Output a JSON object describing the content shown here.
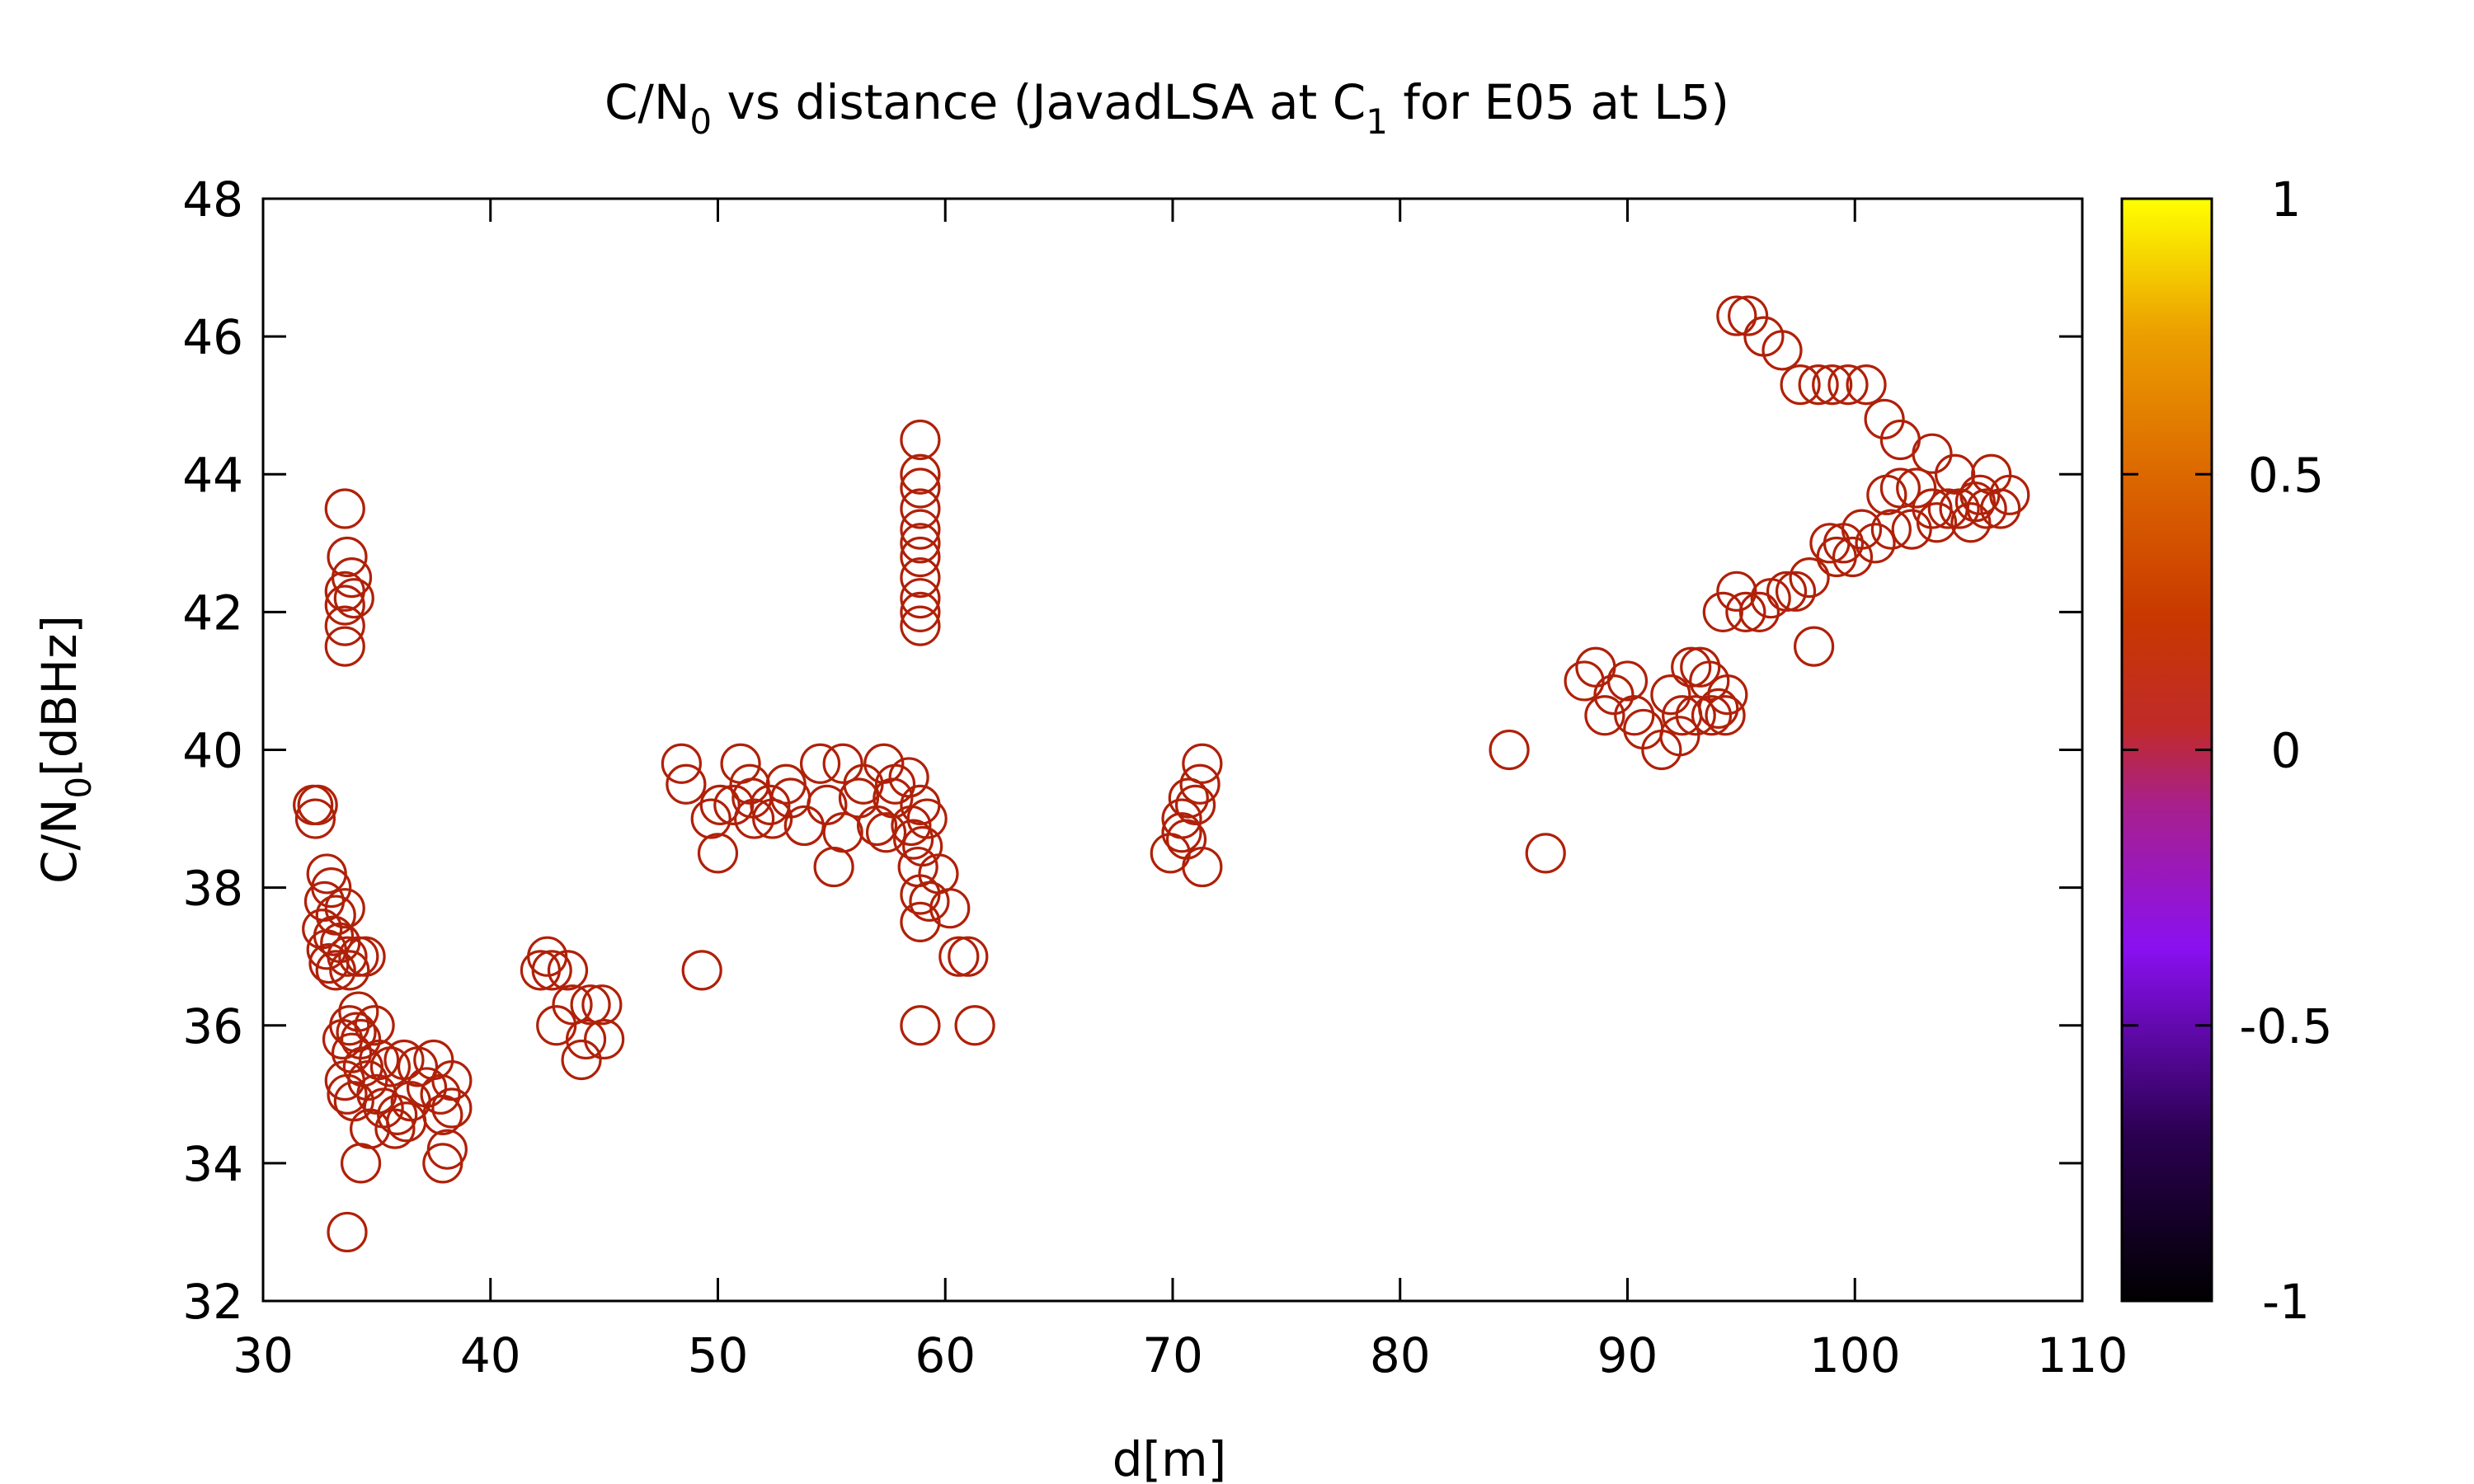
{
  "chart_data": {
    "type": "scatter",
    "title": {
      "main": "C/N",
      "sub0": "0",
      "mid": " vs distance (JavadLSA at C",
      "sub1": "1",
      "end": " for E05 at L5)"
    },
    "xlabel": "d[m]",
    "ylabel": {
      "main": "C/N",
      "sub": "0",
      "end": "[dBHz]"
    },
    "xlim": [
      30,
      110
    ],
    "ylim": [
      32,
      48
    ],
    "x_ticks": [
      "30",
      "40",
      "50",
      "60",
      "70",
      "80",
      "90",
      "100",
      "110"
    ],
    "y_ticks": [
      "32",
      "34",
      "36",
      "38",
      "40",
      "42",
      "44",
      "46",
      "48"
    ],
    "colorbar": {
      "range": [
        -1,
        1
      ],
      "ticks": [
        "1",
        "0.5",
        "0",
        "-0.5",
        "-1"
      ],
      "palette": [
        "#000000",
        "#3a0060",
        "#8a10f0",
        "#a0209a",
        "#c02a2a",
        "#c03000",
        "#d06000",
        "#e09000",
        "#f0c000",
        "#ffff00"
      ]
    },
    "marker": {
      "shape": "circle-open",
      "color": "#b02008"
    },
    "grid": false,
    "points": [
      [
        32.2,
        39.2
      ],
      [
        32.4,
        39.2
      ],
      [
        32.3,
        39.0
      ],
      [
        32.8,
        38.2
      ],
      [
        33.0,
        38.0
      ],
      [
        32.7,
        37.8
      ],
      [
        33.2,
        37.6
      ],
      [
        33.6,
        37.7
      ],
      [
        32.6,
        37.4
      ],
      [
        33.1,
        37.3
      ],
      [
        33.4,
        37.2
      ],
      [
        32.8,
        37.1
      ],
      [
        33.7,
        37.0
      ],
      [
        32.9,
        36.9
      ],
      [
        34.2,
        37.0
      ],
      [
        34.5,
        37.0
      ],
      [
        33.2,
        36.8
      ],
      [
        33.8,
        36.8
      ],
      [
        34.2,
        36.2
      ],
      [
        33.8,
        36.0
      ],
      [
        34.1,
        35.9
      ],
      [
        33.5,
        35.8
      ],
      [
        34.3,
        35.8
      ],
      [
        34.9,
        36.0
      ],
      [
        33.9,
        35.6
      ],
      [
        34.4,
        35.4
      ],
      [
        35.1,
        35.5
      ],
      [
        33.6,
        35.2
      ],
      [
        34.6,
        35.2
      ],
      [
        33.7,
        35.0
      ],
      [
        34.0,
        34.9
      ],
      [
        35.0,
        35.0
      ],
      [
        35.6,
        35.4
      ],
      [
        36.2,
        35.5
      ],
      [
        36.8,
        35.4
      ],
      [
        37.5,
        35.5
      ],
      [
        35.3,
        34.8
      ],
      [
        35.9,
        34.7
      ],
      [
        36.5,
        34.9
      ],
      [
        37.2,
        35.1
      ],
      [
        37.8,
        35.0
      ],
      [
        38.3,
        35.2
      ],
      [
        34.7,
        34.5
      ],
      [
        35.8,
        34.5
      ],
      [
        36.3,
        34.6
      ],
      [
        37.9,
        34.7
      ],
      [
        38.3,
        34.8
      ],
      [
        38.1,
        34.2
      ],
      [
        37.9,
        34.0
      ],
      [
        34.3,
        34.0
      ],
      [
        33.7,
        33.0
      ],
      [
        33.6,
        43.5
      ],
      [
        33.7,
        42.8
      ],
      [
        33.9,
        42.5
      ],
      [
        33.6,
        42.3
      ],
      [
        34.0,
        42.2
      ],
      [
        33.6,
        42.1
      ],
      [
        33.6,
        41.8
      ],
      [
        33.6,
        41.5
      ],
      [
        42.5,
        37.0
      ],
      [
        42.2,
        36.8
      ],
      [
        42.7,
        36.8
      ],
      [
        43.4,
        36.8
      ],
      [
        42.9,
        36.0
      ],
      [
        43.6,
        36.3
      ],
      [
        44.4,
        36.3
      ],
      [
        44.9,
        36.3
      ],
      [
        44.2,
        35.8
      ],
      [
        45.0,
        35.8
      ],
      [
        44.0,
        35.5
      ],
      [
        48.4,
        39.8
      ],
      [
        48.6,
        39.5
      ],
      [
        51.0,
        39.8
      ],
      [
        51.4,
        39.5
      ],
      [
        53.0,
        39.5
      ],
      [
        54.5,
        39.8
      ],
      [
        55.5,
        39.8
      ],
      [
        57.3,
        39.8
      ],
      [
        56.4,
        39.5
      ],
      [
        57.8,
        39.5
      ],
      [
        58.4,
        39.6
      ],
      [
        50.1,
        39.2
      ],
      [
        50.7,
        39.2
      ],
      [
        51.5,
        39.3
      ],
      [
        52.3,
        39.2
      ],
      [
        53.2,
        39.3
      ],
      [
        54.8,
        39.2
      ],
      [
        56.2,
        39.3
      ],
      [
        57.7,
        39.3
      ],
      [
        58.9,
        39.2
      ],
      [
        49.7,
        39.0
      ],
      [
        51.6,
        39.0
      ],
      [
        52.4,
        39.0
      ],
      [
        53.8,
        38.9
      ],
      [
        55.5,
        38.8
      ],
      [
        57.0,
        38.9
      ],
      [
        57.4,
        38.8
      ],
      [
        58.5,
        38.9
      ],
      [
        59.2,
        39.0
      ],
      [
        50.0,
        38.5
      ],
      [
        55.1,
        38.3
      ],
      [
        58.6,
        38.7
      ],
      [
        59.0,
        38.6
      ],
      [
        58.8,
        38.3
      ],
      [
        59.7,
        38.2
      ],
      [
        59.3,
        37.8
      ],
      [
        58.9,
        37.9
      ],
      [
        60.2,
        37.7
      ],
      [
        58.9,
        37.5
      ],
      [
        60.6,
        37.0
      ],
      [
        61.0,
        37.0
      ],
      [
        49.3,
        36.8
      ],
      [
        58.9,
        36.0
      ],
      [
        61.3,
        36.0
      ],
      [
        58.9,
        44.5
      ],
      [
        58.9,
        44.0
      ],
      [
        58.9,
        43.8
      ],
      [
        58.9,
        43.5
      ],
      [
        58.9,
        43.2
      ],
      [
        58.9,
        43.0
      ],
      [
        58.9,
        42.8
      ],
      [
        58.9,
        42.5
      ],
      [
        58.9,
        42.2
      ],
      [
        58.9,
        42.0
      ],
      [
        58.9,
        41.8
      ],
      [
        71.3,
        39.8
      ],
      [
        71.2,
        39.5
      ],
      [
        70.7,
        39.3
      ],
      [
        71.0,
        39.2
      ],
      [
        70.4,
        39.0
      ],
      [
        70.4,
        38.8
      ],
      [
        70.6,
        38.7
      ],
      [
        69.9,
        38.5
      ],
      [
        71.3,
        38.3
      ],
      [
        84.8,
        40.0
      ],
      [
        86.4,
        38.5
      ],
      [
        88.1,
        41.0
      ],
      [
        88.6,
        41.2
      ],
      [
        89.4,
        40.8
      ],
      [
        89.0,
        40.5
      ],
      [
        90.0,
        41.0
      ],
      [
        90.3,
        40.5
      ],
      [
        90.7,
        40.3
      ],
      [
        91.5,
        40.0
      ],
      [
        91.9,
        40.8
      ],
      [
        92.4,
        40.5
      ],
      [
        92.8,
        41.2
      ],
      [
        93.2,
        41.2
      ],
      [
        93.6,
        41.0
      ],
      [
        93.0,
        40.5
      ],
      [
        92.3,
        40.2
      ],
      [
        94.0,
        40.6
      ],
      [
        94.4,
        40.8
      ],
      [
        93.7,
        40.5
      ],
      [
        94.3,
        40.5
      ],
      [
        94.2,
        42.0
      ],
      [
        94.8,
        42.3
      ],
      [
        95.2,
        42.0
      ],
      [
        95.8,
        42.0
      ],
      [
        96.3,
        42.2
      ],
      [
        97.0,
        42.3
      ],
      [
        97.4,
        42.3
      ],
      [
        98.0,
        42.5
      ],
      [
        98.2,
        41.5
      ],
      [
        98.9,
        43.0
      ],
      [
        99.2,
        42.8
      ],
      [
        99.5,
        43.0
      ],
      [
        99.9,
        42.8
      ],
      [
        100.3,
        43.2
      ],
      [
        100.9,
        43.0
      ],
      [
        101.6,
        43.2
      ],
      [
        102.5,
        43.2
      ],
      [
        101.4,
        43.7
      ],
      [
        102.0,
        43.8
      ],
      [
        102.7,
        43.8
      ],
      [
        103.4,
        43.5
      ],
      [
        103.6,
        43.3
      ],
      [
        104.1,
        43.5
      ],
      [
        104.6,
        43.5
      ],
      [
        105.1,
        43.3
      ],
      [
        105.3,
        43.6
      ],
      [
        105.8,
        43.5
      ],
      [
        106.4,
        43.5
      ],
      [
        106.8,
        43.7
      ],
      [
        105.5,
        43.7
      ],
      [
        106.0,
        44.0
      ],
      [
        104.4,
        44.0
      ],
      [
        103.4,
        44.3
      ],
      [
        102.0,
        44.5
      ],
      [
        101.3,
        44.8
      ],
      [
        94.8,
        46.3
      ],
      [
        95.3,
        46.3
      ],
      [
        96.0,
        46.0
      ],
      [
        96.8,
        45.8
      ],
      [
        97.6,
        45.3
      ],
      [
        98.4,
        45.3
      ],
      [
        99.0,
        45.3
      ],
      [
        99.7,
        45.3
      ],
      [
        100.5,
        45.3
      ]
    ]
  }
}
